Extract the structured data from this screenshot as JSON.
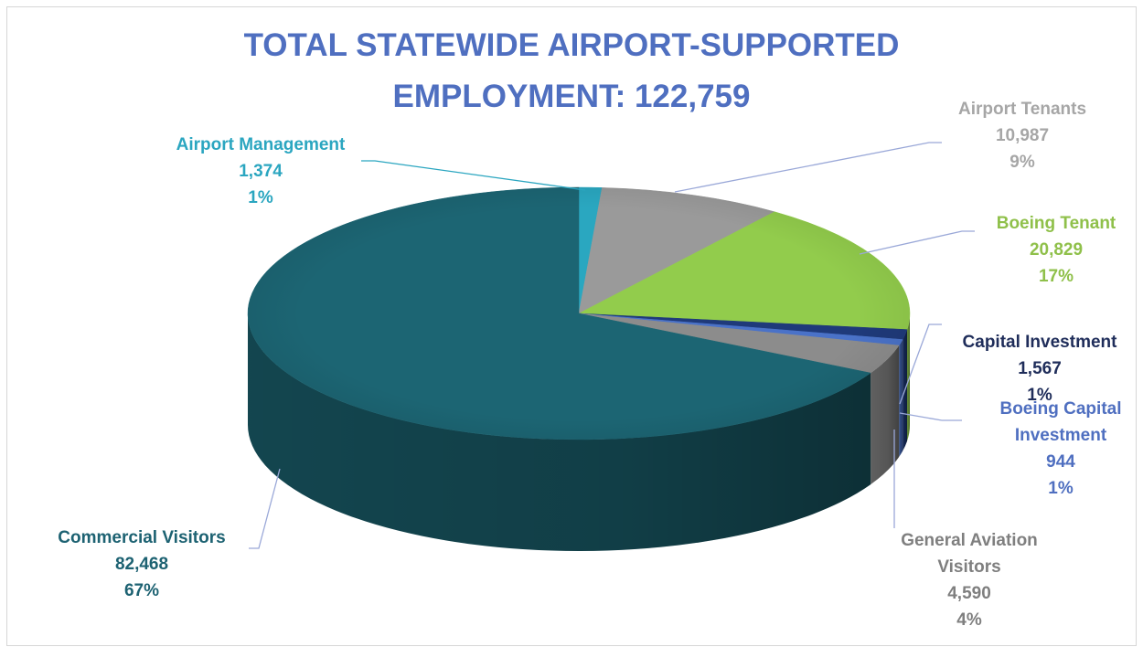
{
  "chart_data": {
    "type": "pie",
    "title_line1": "TOTAL STATEWIDE AIRPORT-SUPPORTED",
    "title_line2": "EMPLOYMENT: 122,759",
    "slices": [
      {
        "name": "Airport Management",
        "value": 1374,
        "value_label": "1,374",
        "percent_label": "1%",
        "color": "#2aa7c0",
        "label_color": "#2ba6c0"
      },
      {
        "name": "Airport Tenants",
        "value": 10987,
        "value_label": "10,987",
        "percent_label": "9%",
        "color": "#9a9a9a",
        "label_color": "#a6a6a6"
      },
      {
        "name": "Boeing Tenant",
        "value": 20829,
        "value_label": "20,829",
        "percent_label": "17%",
        "color": "#92cc4c",
        "label_color": "#8fc04a"
      },
      {
        "name": "Capital Investment",
        "value": 1567,
        "value_label": "1,567",
        "percent_label": "1%",
        "color": "#1f3a7a",
        "label_color": "#1f2d5a"
      },
      {
        "name": "Boeing Capital Investment",
        "value": 944,
        "value_label": "944",
        "percent_label": "1%",
        "color": "#4a72c8",
        "label_color": "#4f6fc0"
      },
      {
        "name": "General Aviation Visitors",
        "value": 4590,
        "value_label": "4,590",
        "percent_label": "4%",
        "color": "#8c8c8c",
        "label_color": "#7f7f7f"
      },
      {
        "name": "Commercial Visitors",
        "value": 82468,
        "value_label": "82,468",
        "percent_label": "67%",
        "color": "#1c6573",
        "label_color": "#1d6272"
      }
    ]
  },
  "labels": {
    "airport_management": {
      "l1": "Airport Management",
      "l2": "1,374",
      "l3": "1%"
    },
    "airport_tenants": {
      "l1": "Airport Tenants",
      "l2": "10,987",
      "l3": "9%"
    },
    "boeing_tenant": {
      "l1": "Boeing Tenant",
      "l2": "20,829",
      "l3": "17%"
    },
    "capital_investment": {
      "l1": "Capital Investment",
      "l2": "1,567",
      "l3": "1%"
    },
    "boeing_capital_investment": {
      "l1": "Boeing Capital",
      "l2": "Investment",
      "l3": "944",
      "l4": "1%"
    },
    "general_aviation_visitors": {
      "l1": "General Aviation",
      "l2": "Visitors",
      "l3": "4,590",
      "l4": "4%"
    },
    "commercial_visitors": {
      "l1": "Commercial Visitors",
      "l2": "82,468",
      "l3": "67%"
    }
  }
}
